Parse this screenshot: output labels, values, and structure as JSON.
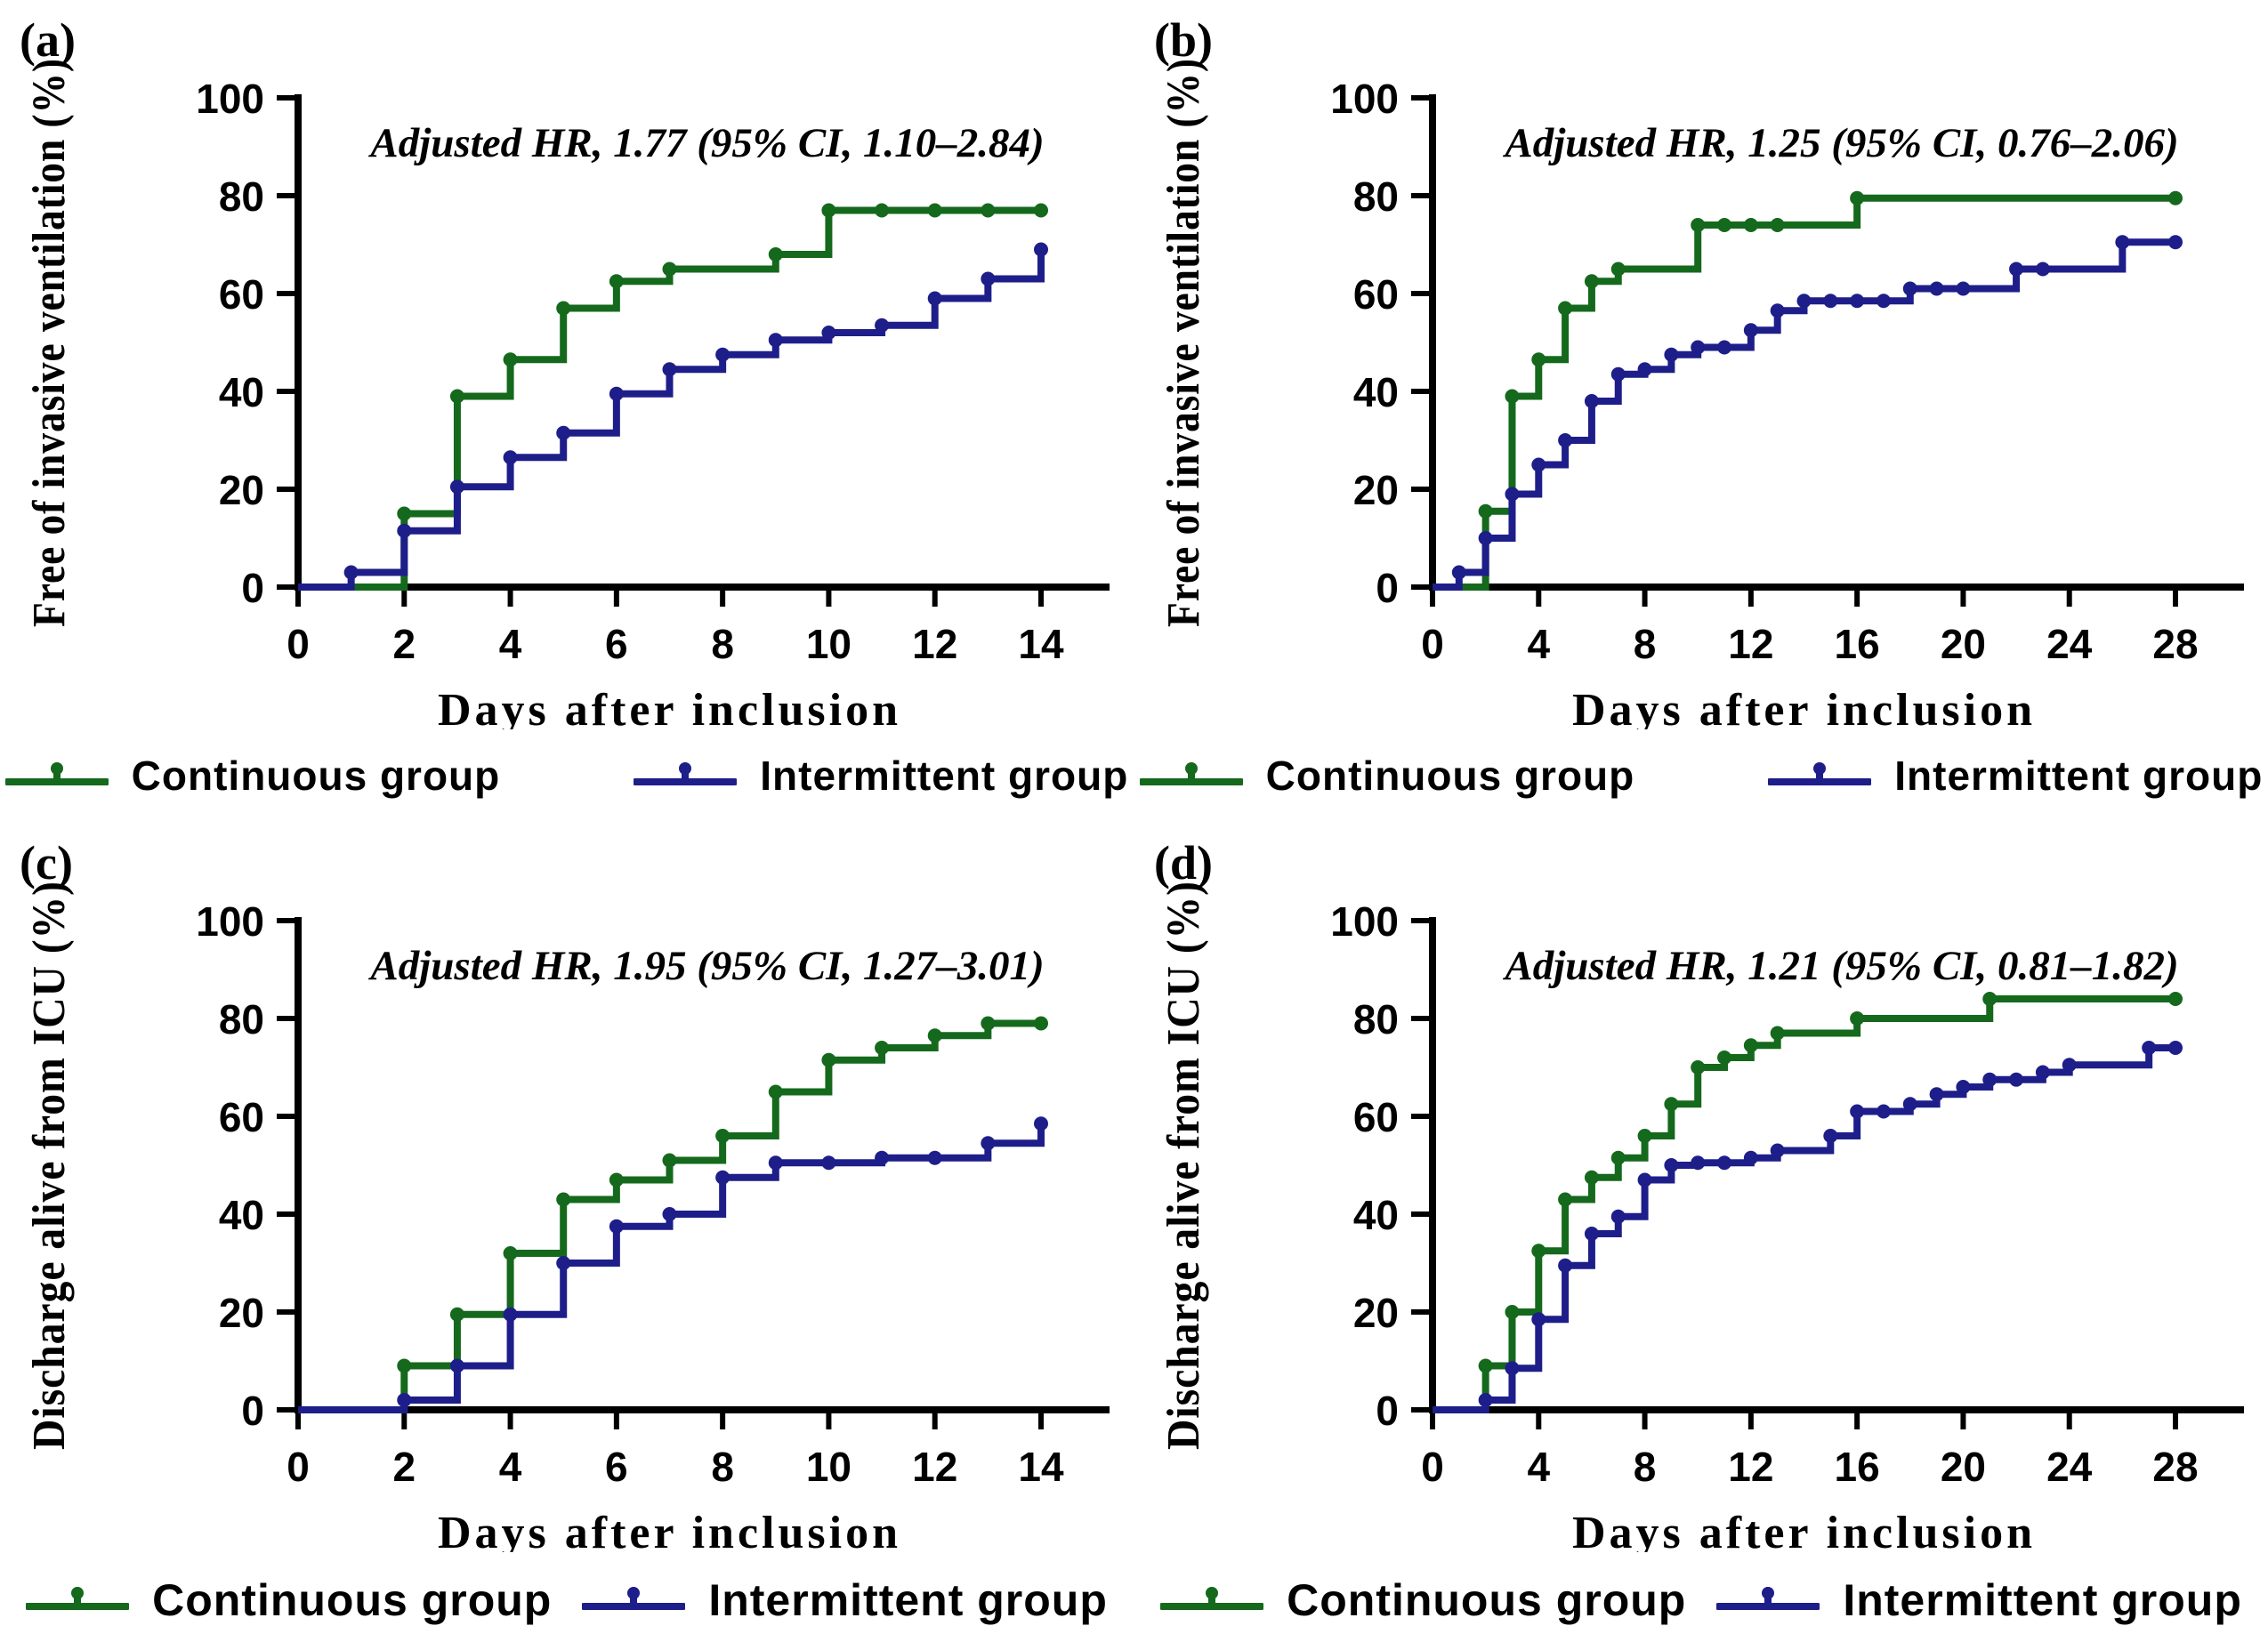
{
  "colors": {
    "continuous": "#15691c",
    "intermittent": "#1e1e8a",
    "axis": "#000000",
    "background": "#ffffff"
  },
  "legend": {
    "continuous_label": "Continuous group",
    "intermittent_label": "Intermittent group"
  },
  "chart_data": [
    {
      "type": "line",
      "panel_label": "(a)",
      "annotation": "Adjusted HR, 1.77 (95% CI, 1.10–2.84)",
      "ylabel": "Free of invasive ventilation (%)",
      "xlabel": "Days after inclusion",
      "ylim": [
        0,
        100
      ],
      "yticks": [
        0,
        20,
        40,
        60,
        80,
        100
      ],
      "xlim": [
        0,
        14
      ],
      "xticks": [
        0,
        2,
        4,
        6,
        8,
        10,
        12,
        14
      ],
      "grid": false,
      "legend_position": "bottom",
      "series": [
        {
          "name": "Continuous group",
          "color_key": "continuous",
          "steps": [
            [
              2,
              15
            ],
            [
              3,
              39
            ],
            [
              4,
              46.5
            ],
            [
              5,
              57
            ],
            [
              6,
              62.5
            ],
            [
              7,
              65
            ],
            [
              9,
              68
            ],
            [
              10,
              77
            ]
          ],
          "censors": [
            11,
            12,
            13,
            14
          ]
        },
        {
          "name": "Intermittent group",
          "color_key": "intermittent",
          "steps": [
            [
              1,
              3
            ],
            [
              2,
              11.5
            ],
            [
              3,
              20.5
            ],
            [
              4,
              26.5
            ],
            [
              5,
              31.5
            ],
            [
              6,
              39.5
            ],
            [
              7,
              44.5
            ],
            [
              8,
              47.5
            ],
            [
              9,
              50.5
            ],
            [
              10,
              52
            ],
            [
              11,
              53.5
            ],
            [
              12,
              59
            ],
            [
              13,
              63
            ],
            [
              14,
              69
            ]
          ],
          "censors": []
        }
      ]
    },
    {
      "type": "line",
      "panel_label": "(b)",
      "annotation": "Adjusted HR, 1.25 (95% CI, 0.76–2.06)",
      "ylabel": "Free of invasive ventilation (%)",
      "xlabel": "Days after inclusion",
      "ylim": [
        0,
        100
      ],
      "yticks": [
        0,
        20,
        40,
        60,
        80,
        100
      ],
      "xlim": [
        0,
        28
      ],
      "xticks": [
        0,
        4,
        8,
        12,
        16,
        20,
        24,
        28
      ],
      "grid": false,
      "legend_position": "bottom",
      "series": [
        {
          "name": "Continuous group",
          "color_key": "continuous",
          "steps": [
            [
              2,
              15.5
            ],
            [
              3,
              39
            ],
            [
              4,
              46.5
            ],
            [
              5,
              57
            ],
            [
              6,
              62.5
            ],
            [
              7,
              65
            ],
            [
              10,
              74
            ],
            [
              16,
              79.5
            ]
          ],
          "censors": [
            11,
            12,
            13,
            28
          ]
        },
        {
          "name": "Intermittent group",
          "color_key": "intermittent",
          "steps": [
            [
              1,
              3
            ],
            [
              2,
              10
            ],
            [
              3,
              19
            ],
            [
              4,
              25
            ],
            [
              5,
              30
            ],
            [
              6,
              38
            ],
            [
              7,
              43.5
            ],
            [
              8,
              44.5
            ],
            [
              9,
              47.5
            ],
            [
              10,
              49
            ],
            [
              12,
              52.5
            ],
            [
              13,
              56.5
            ],
            [
              14,
              58.5
            ],
            [
              18,
              61
            ],
            [
              22,
              65
            ],
            [
              26,
              70.5
            ]
          ],
          "censors": [
            11,
            15,
            16,
            17,
            19,
            20,
            23,
            28
          ]
        }
      ]
    },
    {
      "type": "line",
      "panel_label": "(c)",
      "annotation": "Adjusted HR, 1.95 (95% CI, 1.27–3.01)",
      "ylabel": "Discharge alive from ICU (%)",
      "xlabel": "Days after inclusion",
      "ylim": [
        0,
        100
      ],
      "yticks": [
        0,
        20,
        40,
        60,
        80,
        100
      ],
      "xlim": [
        0,
        14
      ],
      "xticks": [
        0,
        2,
        4,
        6,
        8,
        10,
        12,
        14
      ],
      "grid": false,
      "legend_position": "bottom",
      "series": [
        {
          "name": "Continuous group",
          "color_key": "continuous",
          "steps": [
            [
              2,
              9
            ],
            [
              3,
              19.5
            ],
            [
              4,
              32
            ],
            [
              5,
              43
            ],
            [
              6,
              47
            ],
            [
              7,
              51
            ],
            [
              8,
              56
            ],
            [
              9,
              65
            ],
            [
              10,
              71.5
            ],
            [
              11,
              74
            ],
            [
              12,
              76.5
            ],
            [
              13,
              79
            ]
          ],
          "censors": [
            14
          ]
        },
        {
          "name": "Intermittent group",
          "color_key": "intermittent",
          "steps": [
            [
              2,
              2
            ],
            [
              3,
              9
            ],
            [
              4,
              19.5
            ],
            [
              5,
              30
            ],
            [
              6,
              37.5
            ],
            [
              7,
              40
            ],
            [
              8,
              47.5
            ],
            [
              9,
              50.5
            ],
            [
              11,
              51.5
            ],
            [
              13,
              54.5
            ],
            [
              14,
              58.5
            ]
          ],
          "censors": [
            10,
            12
          ]
        }
      ]
    },
    {
      "type": "line",
      "panel_label": "(d)",
      "annotation": "Adjusted HR, 1.21 (95% CI, 0.81–1.82)",
      "ylabel": "Discharge alive from ICU (%)",
      "xlabel": "Days after inclusion",
      "ylim": [
        0,
        100
      ],
      "yticks": [
        0,
        20,
        40,
        60,
        80,
        100
      ],
      "xlim": [
        0,
        28
      ],
      "xticks": [
        0,
        4,
        8,
        12,
        16,
        20,
        24,
        28
      ],
      "grid": false,
      "legend_position": "bottom",
      "series": [
        {
          "name": "Continuous group",
          "color_key": "continuous",
          "steps": [
            [
              2,
              9
            ],
            [
              3,
              20
            ],
            [
              4,
              32.5
            ],
            [
              5,
              43
            ],
            [
              6,
              47.5
            ],
            [
              7,
              51.5
            ],
            [
              8,
              56
            ],
            [
              9,
              62.5
            ],
            [
              10,
              70
            ],
            [
              11,
              72
            ],
            [
              12,
              74.5
            ],
            [
              13,
              77
            ],
            [
              16,
              80
            ],
            [
              21,
              84
            ]
          ],
          "censors": [
            28
          ]
        },
        {
          "name": "Intermittent group",
          "color_key": "intermittent",
          "steps": [
            [
              2,
              2
            ],
            [
              3,
              8.5
            ],
            [
              4,
              18.5
            ],
            [
              5,
              29.5
            ],
            [
              6,
              36
            ],
            [
              7,
              39.5
            ],
            [
              8,
              47
            ],
            [
              9,
              50
            ],
            [
              10,
              50.5
            ],
            [
              12,
              51.5
            ],
            [
              13,
              53
            ],
            [
              15,
              56
            ],
            [
              16,
              61
            ],
            [
              18,
              62.5
            ],
            [
              19,
              64.5
            ],
            [
              20,
              66
            ],
            [
              21,
              67.5
            ],
            [
              23,
              69
            ],
            [
              24,
              70.5
            ],
            [
              27,
              74
            ]
          ],
          "censors": [
            11,
            17,
            22,
            28
          ]
        }
      ]
    }
  ]
}
